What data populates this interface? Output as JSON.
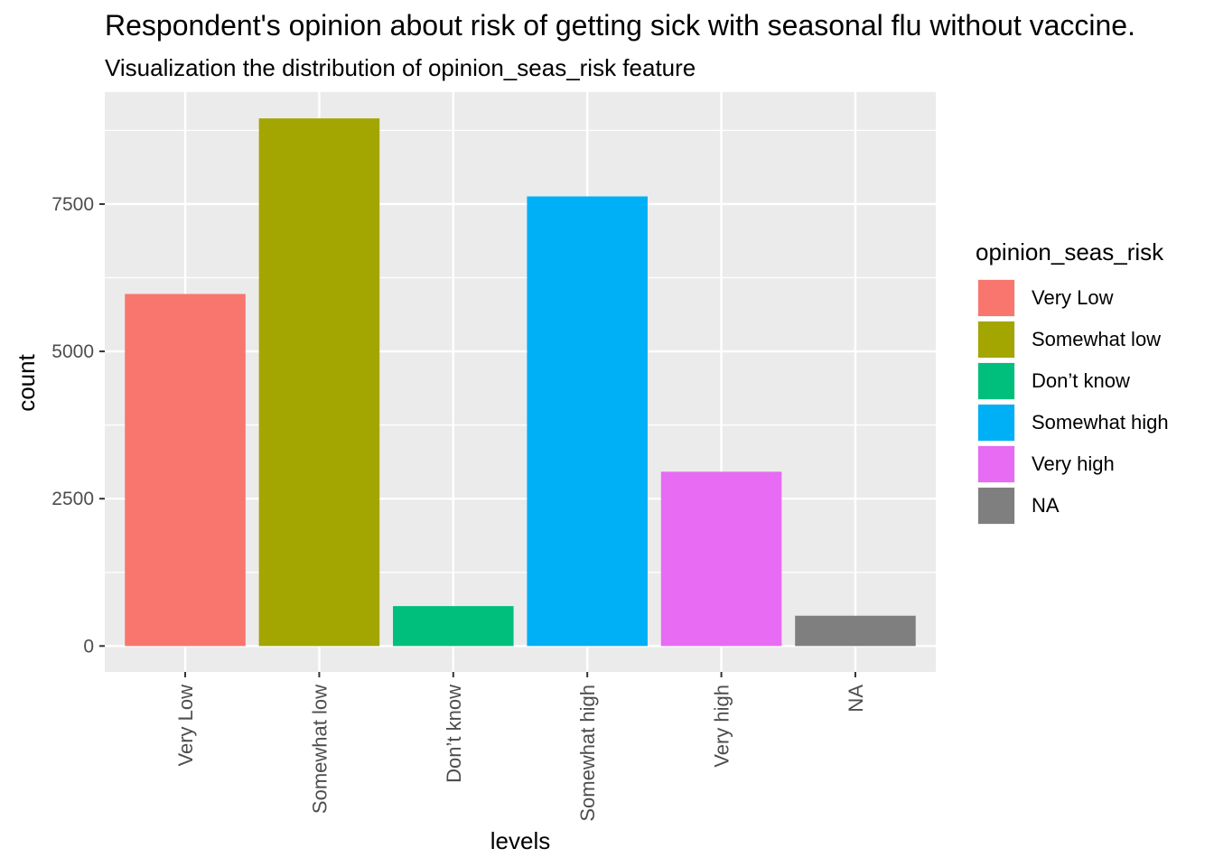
{
  "chart_data": {
    "type": "bar",
    "title": "Respondent's opinion about risk of getting sick with seasonal flu without vaccine.",
    "subtitle": "Visualization the distribution of opinion_seas_risk feature",
    "xlabel": "levels",
    "ylabel": "count",
    "categories": [
      "Very Low",
      "Somewhat low",
      "Don’t know",
      "Somewhat high",
      "Very high",
      "NA"
    ],
    "values": [
      5974,
      8954,
      677,
      7630,
      2958,
      514
    ],
    "colors": [
      "#F8766D",
      "#A3A500",
      "#00BF7D",
      "#00B0F6",
      "#E76BF3",
      "#7F7F7F"
    ],
    "ylim": [
      -440,
      9400
    ],
    "yticks": [
      0,
      2500,
      5000,
      7500
    ],
    "ytick_labels": [
      "0",
      "2500",
      "5000",
      "7500"
    ],
    "grid": true,
    "legend": {
      "title": "opinion_seas_risk",
      "position": "right",
      "entries": [
        "Very Low",
        "Somewhat low",
        "Don’t know",
        "Somewhat high",
        "Very high",
        "NA"
      ]
    }
  }
}
